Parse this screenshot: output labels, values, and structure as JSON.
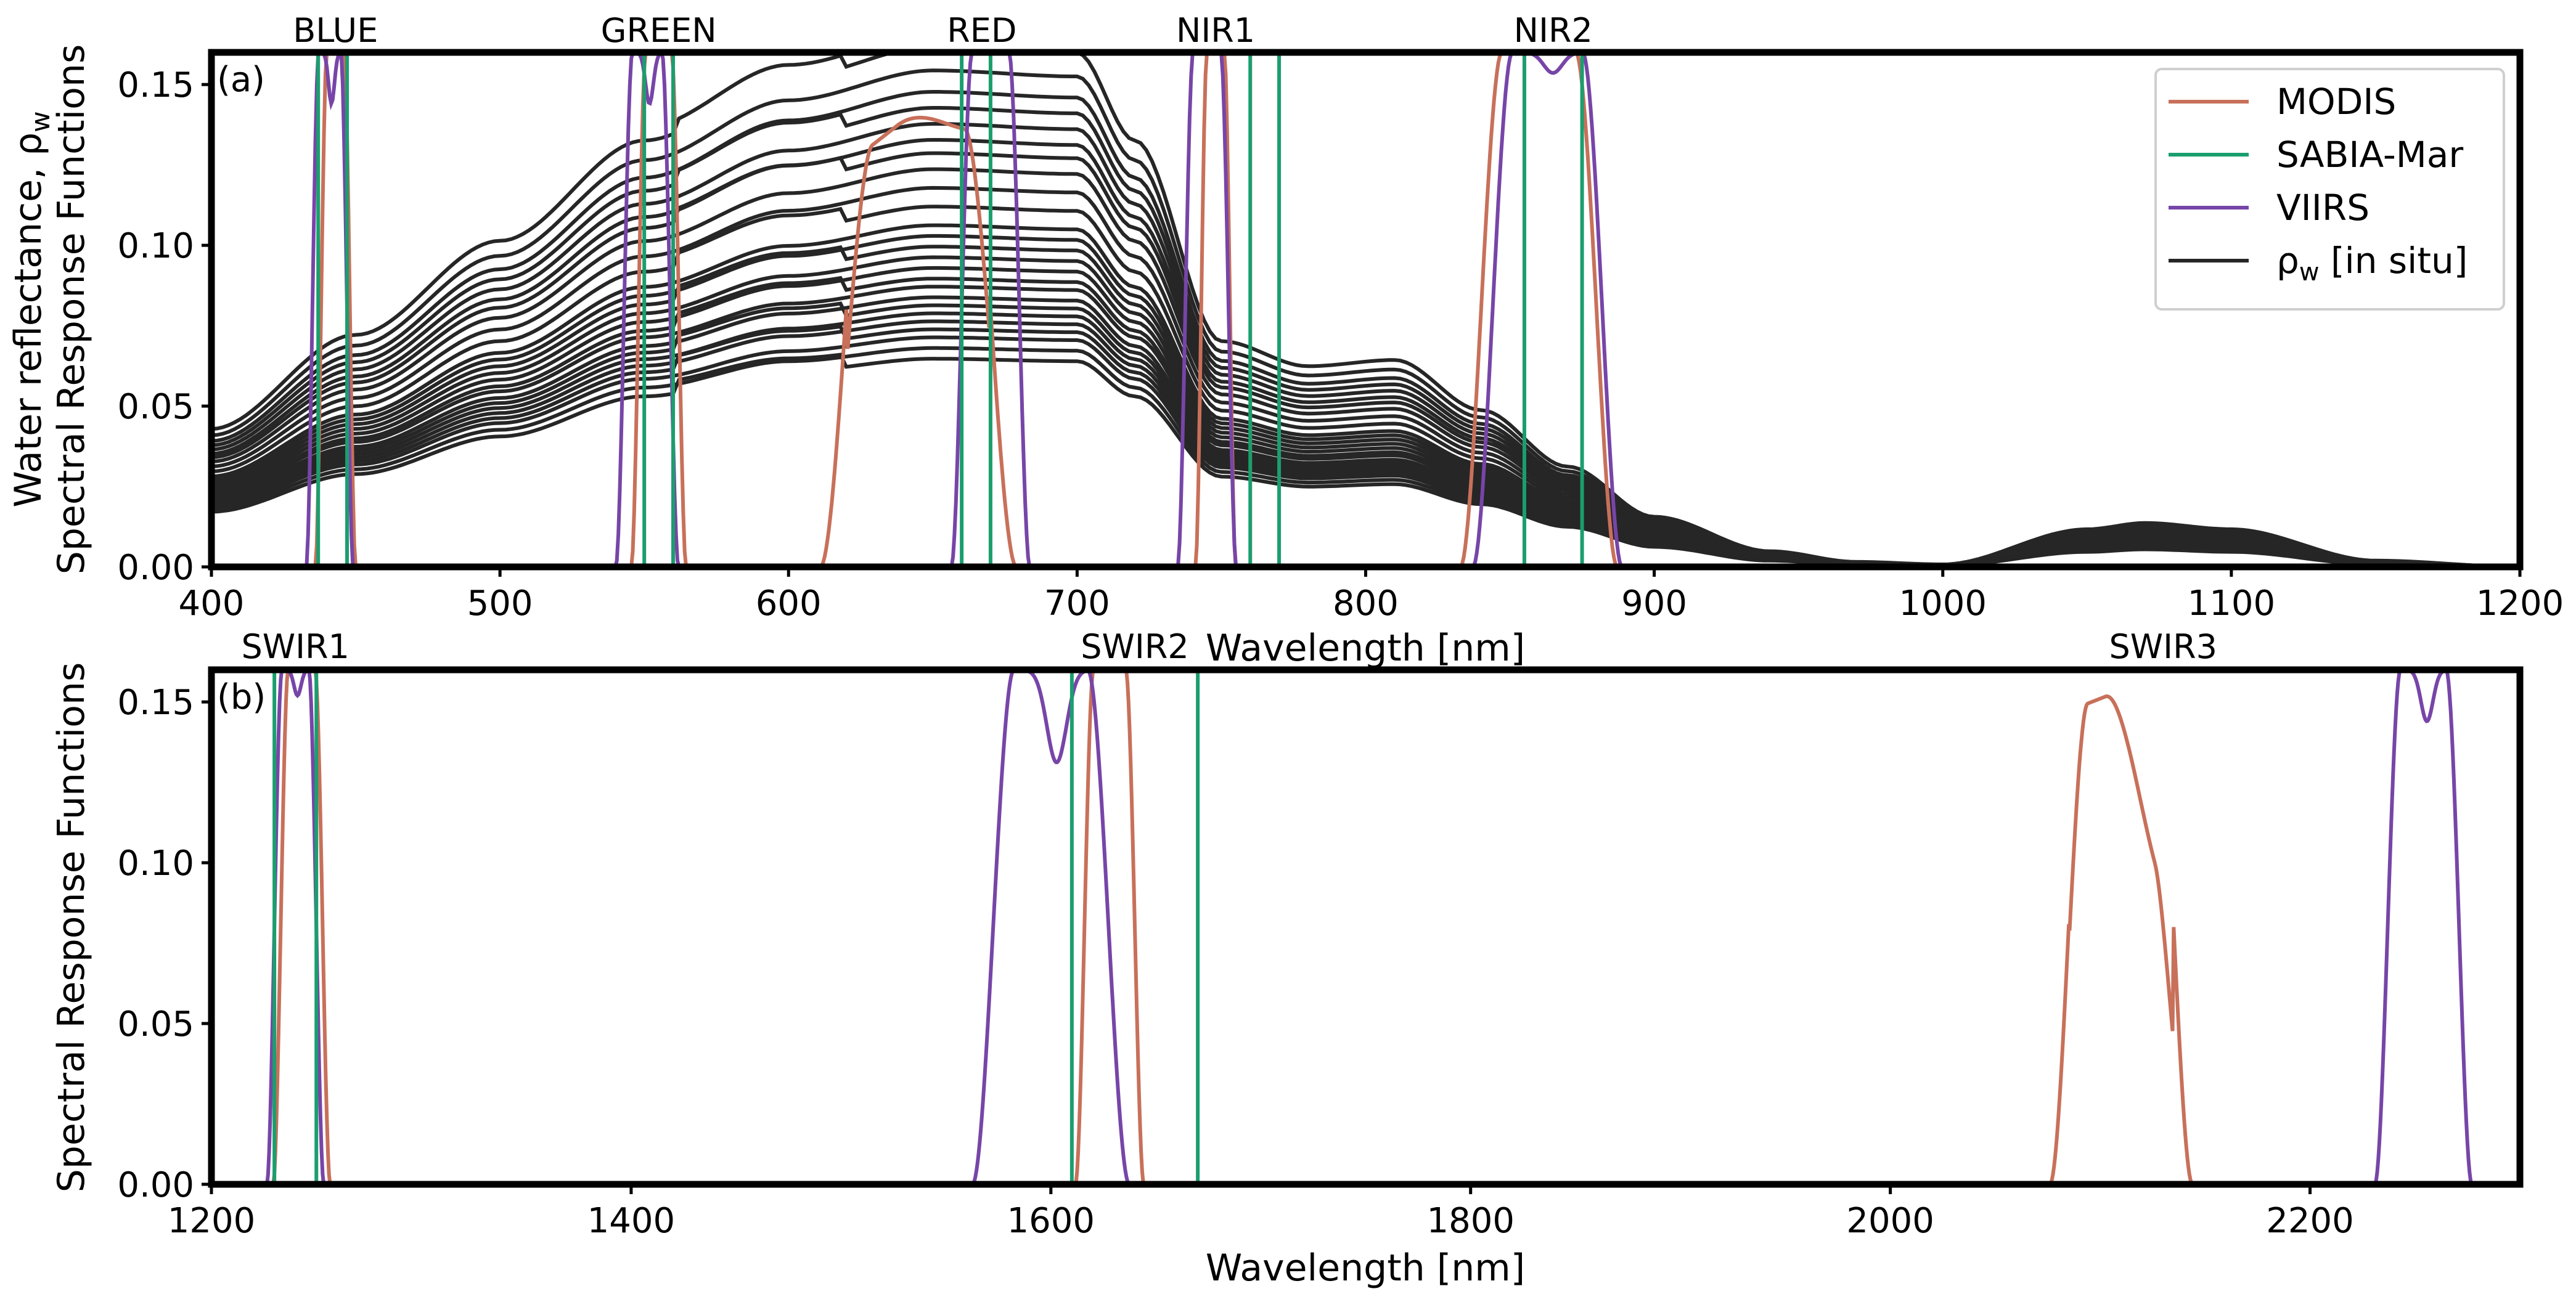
{
  "figure_title": "",
  "colors": {
    "MODIS": "#c8705a",
    "SABIA-Mar": "#1b9e6e",
    "VIIRS": "#7745a8",
    "in_situ": "#262626"
  },
  "chart_data": [
    {
      "type": "line",
      "panel_label": "(a)",
      "xlabel": "Wavelength [nm]",
      "ylabel_line1": "Water reflectance, ρ",
      "ylabel_sub": "w",
      "ylabel_line2": "Spectral Response Functions",
      "xlim": [
        400,
        1200
      ],
      "ylim": [
        0,
        0.16
      ],
      "xticks": [
        400,
        500,
        600,
        700,
        800,
        900,
        1000,
        1100,
        1200
      ],
      "yticks": [
        0.0,
        0.05,
        0.1,
        0.15
      ],
      "ytick_labels": [
        "0.00",
        "0.05",
        "0.10",
        "0.15"
      ],
      "band_labels": [
        {
          "name": "BLUE",
          "x": 443
        },
        {
          "name": "GREEN",
          "x": 555
        },
        {
          "name": "RED",
          "x": 667
        },
        {
          "name": "NIR1",
          "x": 748
        },
        {
          "name": "NIR2",
          "x": 865
        }
      ],
      "legend": {
        "position": "top-right",
        "entries": [
          {
            "label": "MODIS",
            "color_key": "MODIS"
          },
          {
            "label": "SABIA-Mar",
            "color_key": "SABIA-Mar"
          },
          {
            "label": "VIIRS",
            "color_key": "VIIRS"
          },
          {
            "label": "ρ",
            "sub": "w",
            "rest": " [in situ]",
            "color_key": "in_situ"
          }
        ]
      },
      "srf": {
        "peak": 0.16,
        "MODIS": [
          {
            "center": 443,
            "width": 10
          },
          {
            "center": 555,
            "width": 14
          },
          {
            "center": 645,
            "width": 50,
            "ramp": [
              0.78,
              0.86
            ]
          },
          {
            "center": 748,
            "width": 10
          },
          {
            "center": 860,
            "width": 40
          }
        ],
        "VIIRS": [
          {
            "center": 441,
            "width": 12,
            "dip": 0.9
          },
          {
            "center": 551,
            "width": 16,
            "dip": 0.9
          },
          {
            "center": 670,
            "width": 20
          },
          {
            "center": 745,
            "width": 15
          },
          {
            "center": 863,
            "width": 38,
            "dip": 0.96
          }
        ],
        "SABIA-Mar": [
          {
            "lo": 437,
            "hi": 447
          },
          {
            "lo": 550,
            "hi": 560
          },
          {
            "lo": 660,
            "hi": 670
          },
          {
            "lo": 760,
            "hi": 770
          },
          {
            "lo": 855,
            "hi": 875
          }
        ]
      },
      "in_situ": {
        "wavelengths": [
          400,
          450,
          500,
          550,
          600,
          650,
          700,
          720,
          750,
          780,
          810,
          840,
          870,
          900,
          940,
          970,
          1000,
          1050,
          1070,
          1100,
          1150,
          1200
        ],
        "shape": [
          0.22,
          0.37,
          0.52,
          0.68,
          0.78,
          0.83,
          0.82,
          0.68,
          0.36,
          0.32,
          0.33,
          0.25,
          0.16,
          0.08,
          0.025,
          0.008,
          0.004,
          0.06,
          0.07,
          0.06,
          0.01,
          0.0
        ],
        "scales": [
          0.078,
          0.082,
          0.086,
          0.089,
          0.092,
          0.095,
          0.098,
          0.101,
          0.105,
          0.108,
          0.112,
          0.116,
          0.12,
          0.124,
          0.128,
          0.135,
          0.142,
          0.149,
          0.155,
          0.16,
          0.166,
          0.172,
          0.178,
          0.186,
          0.195
        ]
      }
    },
    {
      "type": "line",
      "panel_label": "(b)",
      "xlabel": "Wavelength [nm]",
      "ylabel_line1": "Spectral Response Functions",
      "xlim": [
        1200,
        2300
      ],
      "ylim": [
        0,
        0.16
      ],
      "xticks": [
        1200,
        1400,
        1600,
        1800,
        2000,
        2200
      ],
      "yticks": [
        0.0,
        0.05,
        0.1,
        0.15
      ],
      "ytick_labels": [
        "0.00",
        "0.05",
        "0.10",
        "0.15"
      ],
      "band_labels": [
        {
          "name": "SWIR1",
          "x": 1240
        },
        {
          "name": "SWIR2",
          "x": 1640
        },
        {
          "name": "SWIR3",
          "x": 2130
        }
      ],
      "srf": {
        "peak": 0.16,
        "MODIS": [
          {
            "center": 1243,
            "width": 20
          },
          {
            "center": 1628,
            "width": 24
          },
          {
            "center": 2110,
            "width": 50,
            "ramp": [
              0.92,
              0.55
            ]
          }
        ],
        "VIIRS": [
          {
            "center": 1240,
            "width": 20,
            "dip": 0.95
          },
          {
            "center": 1600,
            "width": 55,
            "dip": 0.82
          },
          {
            "center": 2254,
            "width": 34,
            "dip": 0.9
          }
        ],
        "SABIA-Mar": [
          {
            "lo": 1230,
            "hi": 1250
          },
          {
            "lo": 1610,
            "hi": 1670
          }
        ]
      }
    }
  ]
}
